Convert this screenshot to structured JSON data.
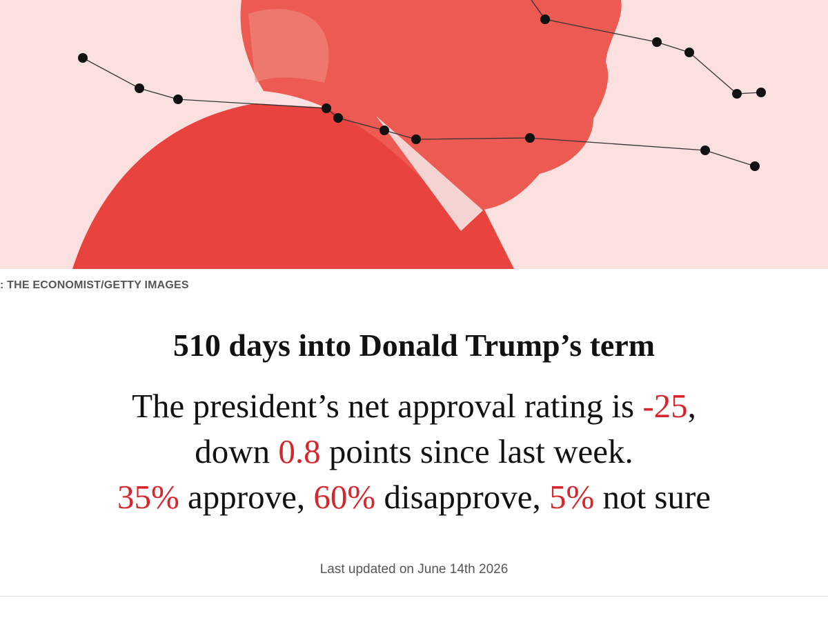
{
  "image": {
    "credit": ": THE ECONOMIST/GETTY IMAGES"
  },
  "headline": "510 days into Donald Trump’s term",
  "summary": {
    "lines": [
      [
        {
          "text": "The president’s net approval rating is ",
          "highlight": false
        },
        {
          "text": "-25",
          "highlight": true
        },
        {
          "text": ",",
          "highlight": false
        }
      ],
      [
        {
          "text": "down ",
          "highlight": false
        },
        {
          "text": "0.8",
          "highlight": true
        },
        {
          "text": " points since last week.",
          "highlight": false
        }
      ],
      [
        {
          "text": "35%",
          "highlight": true
        },
        {
          "text": " approve, ",
          "highlight": false
        },
        {
          "text": "60%",
          "highlight": true
        },
        {
          "text": " disapprove, ",
          "highlight": false
        },
        {
          "text": "5%",
          "highlight": true
        },
        {
          "text": " not sure",
          "highlight": false
        }
      ]
    ]
  },
  "updated": "Last updated on June 14th 2026"
}
